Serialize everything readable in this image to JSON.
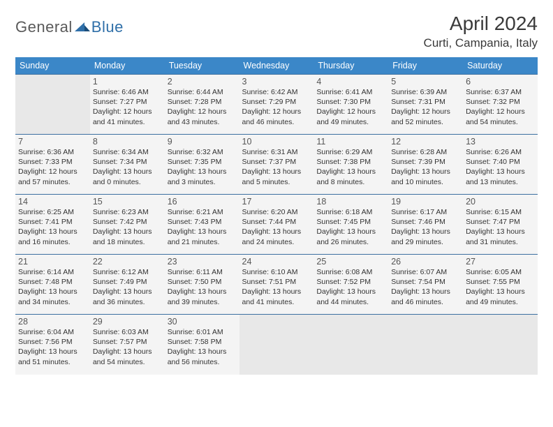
{
  "logo": {
    "text_general": "General",
    "text_blue": "Blue",
    "icon_color": "#2f6fa8"
  },
  "title": "April 2024",
  "location": "Curti, Campania, Italy",
  "colors": {
    "header_bg": "#3b87c8",
    "header_text": "#ffffff",
    "cell_border": "#3b6fa0",
    "cell_bg": "#f4f4f4",
    "empty_bg": "#e8e8e8",
    "title_color": "#3a3a3a",
    "body_text": "#333333"
  },
  "weekdays": [
    "Sunday",
    "Monday",
    "Tuesday",
    "Wednesday",
    "Thursday",
    "Friday",
    "Saturday"
  ],
  "weeks": [
    [
      null,
      {
        "n": "1",
        "sunrise": "6:46 AM",
        "sunset": "7:27 PM",
        "daylight": "12 hours and 41 minutes."
      },
      {
        "n": "2",
        "sunrise": "6:44 AM",
        "sunset": "7:28 PM",
        "daylight": "12 hours and 43 minutes."
      },
      {
        "n": "3",
        "sunrise": "6:42 AM",
        "sunset": "7:29 PM",
        "daylight": "12 hours and 46 minutes."
      },
      {
        "n": "4",
        "sunrise": "6:41 AM",
        "sunset": "7:30 PM",
        "daylight": "12 hours and 49 minutes."
      },
      {
        "n": "5",
        "sunrise": "6:39 AM",
        "sunset": "7:31 PM",
        "daylight": "12 hours and 52 minutes."
      },
      {
        "n": "6",
        "sunrise": "6:37 AM",
        "sunset": "7:32 PM",
        "daylight": "12 hours and 54 minutes."
      }
    ],
    [
      {
        "n": "7",
        "sunrise": "6:36 AM",
        "sunset": "7:33 PM",
        "daylight": "12 hours and 57 minutes."
      },
      {
        "n": "8",
        "sunrise": "6:34 AM",
        "sunset": "7:34 PM",
        "daylight": "13 hours and 0 minutes."
      },
      {
        "n": "9",
        "sunrise": "6:32 AM",
        "sunset": "7:35 PM",
        "daylight": "13 hours and 3 minutes."
      },
      {
        "n": "10",
        "sunrise": "6:31 AM",
        "sunset": "7:37 PM",
        "daylight": "13 hours and 5 minutes."
      },
      {
        "n": "11",
        "sunrise": "6:29 AM",
        "sunset": "7:38 PM",
        "daylight": "13 hours and 8 minutes."
      },
      {
        "n": "12",
        "sunrise": "6:28 AM",
        "sunset": "7:39 PM",
        "daylight": "13 hours and 10 minutes."
      },
      {
        "n": "13",
        "sunrise": "6:26 AM",
        "sunset": "7:40 PM",
        "daylight": "13 hours and 13 minutes."
      }
    ],
    [
      {
        "n": "14",
        "sunrise": "6:25 AM",
        "sunset": "7:41 PM",
        "daylight": "13 hours and 16 minutes."
      },
      {
        "n": "15",
        "sunrise": "6:23 AM",
        "sunset": "7:42 PM",
        "daylight": "13 hours and 18 minutes."
      },
      {
        "n": "16",
        "sunrise": "6:21 AM",
        "sunset": "7:43 PM",
        "daylight": "13 hours and 21 minutes."
      },
      {
        "n": "17",
        "sunrise": "6:20 AM",
        "sunset": "7:44 PM",
        "daylight": "13 hours and 24 minutes."
      },
      {
        "n": "18",
        "sunrise": "6:18 AM",
        "sunset": "7:45 PM",
        "daylight": "13 hours and 26 minutes."
      },
      {
        "n": "19",
        "sunrise": "6:17 AM",
        "sunset": "7:46 PM",
        "daylight": "13 hours and 29 minutes."
      },
      {
        "n": "20",
        "sunrise": "6:15 AM",
        "sunset": "7:47 PM",
        "daylight": "13 hours and 31 minutes."
      }
    ],
    [
      {
        "n": "21",
        "sunrise": "6:14 AM",
        "sunset": "7:48 PM",
        "daylight": "13 hours and 34 minutes."
      },
      {
        "n": "22",
        "sunrise": "6:12 AM",
        "sunset": "7:49 PM",
        "daylight": "13 hours and 36 minutes."
      },
      {
        "n": "23",
        "sunrise": "6:11 AM",
        "sunset": "7:50 PM",
        "daylight": "13 hours and 39 minutes."
      },
      {
        "n": "24",
        "sunrise": "6:10 AM",
        "sunset": "7:51 PM",
        "daylight": "13 hours and 41 minutes."
      },
      {
        "n": "25",
        "sunrise": "6:08 AM",
        "sunset": "7:52 PM",
        "daylight": "13 hours and 44 minutes."
      },
      {
        "n": "26",
        "sunrise": "6:07 AM",
        "sunset": "7:54 PM",
        "daylight": "13 hours and 46 minutes."
      },
      {
        "n": "27",
        "sunrise": "6:05 AM",
        "sunset": "7:55 PM",
        "daylight": "13 hours and 49 minutes."
      }
    ],
    [
      {
        "n": "28",
        "sunrise": "6:04 AM",
        "sunset": "7:56 PM",
        "daylight": "13 hours and 51 minutes."
      },
      {
        "n": "29",
        "sunrise": "6:03 AM",
        "sunset": "7:57 PM",
        "daylight": "13 hours and 54 minutes."
      },
      {
        "n": "30",
        "sunrise": "6:01 AM",
        "sunset": "7:58 PM",
        "daylight": "13 hours and 56 minutes."
      },
      null,
      null,
      null,
      null
    ]
  ],
  "labels": {
    "sunrise": "Sunrise:",
    "sunset": "Sunset:",
    "daylight": "Daylight:"
  }
}
